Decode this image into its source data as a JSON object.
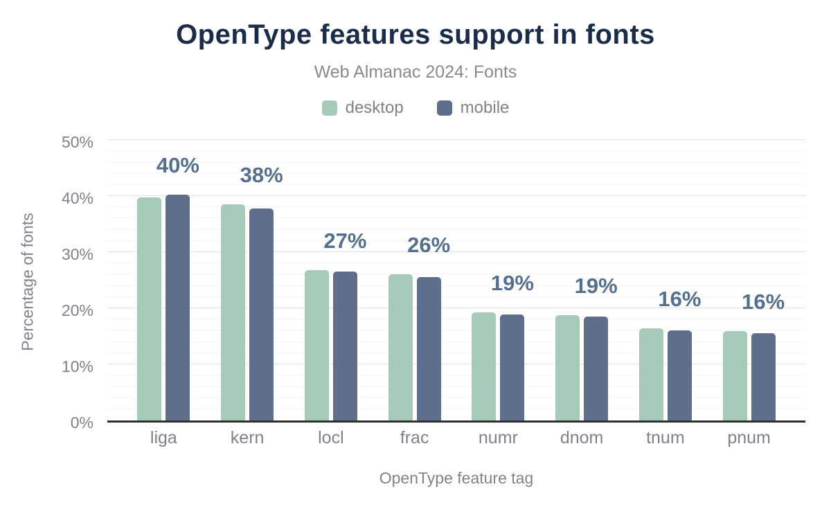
{
  "title": "OpenType features support in fonts",
  "subtitle": "Web Almanac 2024: Fonts",
  "chart_data": {
    "type": "bar",
    "title": "OpenType features support in fonts",
    "subtitle": "Web Almanac 2024: Fonts",
    "categories": [
      "liga",
      "kern",
      "locl",
      "frac",
      "numr",
      "dnom",
      "tnum",
      "pnum"
    ],
    "series": [
      {
        "name": "desktop",
        "color": "#a6c9b8",
        "values": [
          39.7,
          38.5,
          26.8,
          26.1,
          19.2,
          18.8,
          16.4,
          15.9
        ]
      },
      {
        "name": "mobile",
        "color": "#5f6e8b",
        "values": [
          40.3,
          37.8,
          26.5,
          25.6,
          18.9,
          18.5,
          16.1,
          15.6
        ]
      }
    ],
    "bar_labels": [
      "40%",
      "38%",
      "27%",
      "26%",
      "19%",
      "19%",
      "16%",
      "16%"
    ],
    "xlabel": "OpenType feature tag",
    "ylabel": "Percentage of fonts",
    "ylim": [
      0,
      50
    ],
    "yticks": [
      {
        "value": 0,
        "label": "0%"
      },
      {
        "value": 10,
        "label": "10%"
      },
      {
        "value": 20,
        "label": "20%"
      },
      {
        "value": 30,
        "label": "30%"
      },
      {
        "value": 40,
        "label": "40%"
      },
      {
        "value": 50,
        "label": "50%"
      }
    ],
    "grid": {
      "minor_step": 2,
      "major_step": 10,
      "on": true
    },
    "legend_position": "top"
  },
  "colors": {
    "title": "#1b2b4a",
    "subtitle": "#8a8a8a",
    "axis_text": "#7f828a",
    "legend_text": "#7f828a",
    "bar_label": "#54708e",
    "axis_line": "#2e2e2e",
    "grid_major": "#e2e2e2",
    "grid_minor": "#f4f4f4",
    "background": "#ffffff"
  }
}
